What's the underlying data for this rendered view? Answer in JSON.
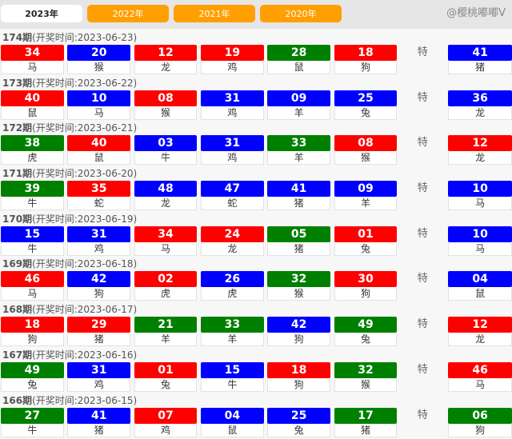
{
  "tabs": [
    {
      "label": "2023年",
      "active": true
    },
    {
      "label": "2022年"
    },
    {
      "label": "2021年"
    },
    {
      "label": "2020年"
    }
  ],
  "special_label": "特",
  "colors": {
    "red": "#ff0000",
    "blue": "#0000ff",
    "green": "#008000"
  },
  "watermark": "@樱桃嘟嘟V",
  "draws": [
    {
      "period": "174期",
      "time": "(开奖时间:2023-06-23)",
      "balls": [
        [
          "34",
          "red",
          "马"
        ],
        [
          "20",
          "blue",
          "猴"
        ],
        [
          "12",
          "red",
          "龙"
        ],
        [
          "19",
          "red",
          "鸡"
        ],
        [
          "28",
          "green",
          "鼠"
        ],
        [
          "18",
          "red",
          "狗"
        ]
      ],
      "special": [
        "41",
        "blue",
        "猪"
      ]
    },
    {
      "period": "173期",
      "time": "(开奖时间:2023-06-22)",
      "balls": [
        [
          "40",
          "red",
          "鼠"
        ],
        [
          "10",
          "blue",
          "马"
        ],
        [
          "08",
          "red",
          "猴"
        ],
        [
          "31",
          "blue",
          "鸡"
        ],
        [
          "09",
          "blue",
          "羊"
        ],
        [
          "25",
          "blue",
          "兔"
        ]
      ],
      "special": [
        "36",
        "blue",
        "龙"
      ]
    },
    {
      "period": "172期",
      "time": "(开奖时间:2023-06-21)",
      "balls": [
        [
          "38",
          "green",
          "虎"
        ],
        [
          "40",
          "red",
          "鼠"
        ],
        [
          "03",
          "blue",
          "牛"
        ],
        [
          "31",
          "blue",
          "鸡"
        ],
        [
          "33",
          "green",
          "羊"
        ],
        [
          "08",
          "red",
          "猴"
        ]
      ],
      "special": [
        "12",
        "red",
        "龙"
      ]
    },
    {
      "period": "171期",
      "time": "(开奖时间:2023-06-20)",
      "balls": [
        [
          "39",
          "green",
          "牛"
        ],
        [
          "35",
          "red",
          "蛇"
        ],
        [
          "48",
          "blue",
          "龙"
        ],
        [
          "47",
          "blue",
          "蛇"
        ],
        [
          "41",
          "blue",
          "猪"
        ],
        [
          "09",
          "blue",
          "羊"
        ]
      ],
      "special": [
        "10",
        "blue",
        "马"
      ]
    },
    {
      "period": "170期",
      "time": "(开奖时间:2023-06-19)",
      "balls": [
        [
          "15",
          "blue",
          "牛"
        ],
        [
          "31",
          "blue",
          "鸡"
        ],
        [
          "34",
          "red",
          "马"
        ],
        [
          "24",
          "red",
          "龙"
        ],
        [
          "05",
          "green",
          "猪"
        ],
        [
          "01",
          "red",
          "兔"
        ]
      ],
      "special": [
        "10",
        "blue",
        "马"
      ]
    },
    {
      "period": "169期",
      "time": "(开奖时间:2023-06-18)",
      "balls": [
        [
          "46",
          "red",
          "马"
        ],
        [
          "42",
          "blue",
          "狗"
        ],
        [
          "02",
          "red",
          "虎"
        ],
        [
          "26",
          "blue",
          "虎"
        ],
        [
          "32",
          "green",
          "猴"
        ],
        [
          "30",
          "red",
          "狗"
        ]
      ],
      "special": [
        "04",
        "blue",
        "鼠"
      ]
    },
    {
      "period": "168期",
      "time": "(开奖时间:2023-06-17)",
      "balls": [
        [
          "18",
          "red",
          "狗"
        ],
        [
          "29",
          "red",
          "猪"
        ],
        [
          "21",
          "green",
          "羊"
        ],
        [
          "33",
          "green",
          "羊"
        ],
        [
          "42",
          "blue",
          "狗"
        ],
        [
          "49",
          "green",
          "兔"
        ]
      ],
      "special": [
        "12",
        "red",
        "龙"
      ]
    },
    {
      "period": "167期",
      "time": "(开奖时间:2023-06-16)",
      "balls": [
        [
          "49",
          "green",
          "兔"
        ],
        [
          "31",
          "blue",
          "鸡"
        ],
        [
          "01",
          "red",
          "兔"
        ],
        [
          "15",
          "blue",
          "牛"
        ],
        [
          "18",
          "red",
          "狗"
        ],
        [
          "32",
          "green",
          "猴"
        ]
      ],
      "special": [
        "46",
        "red",
        "马"
      ]
    },
    {
      "period": "166期",
      "time": "(开奖时间:2023-06-15)",
      "balls": [
        [
          "27",
          "green",
          "牛"
        ],
        [
          "41",
          "blue",
          "猪"
        ],
        [
          "07",
          "red",
          "鸡"
        ],
        [
          "04",
          "blue",
          "鼠"
        ],
        [
          "25",
          "blue",
          "兔"
        ],
        [
          "17",
          "green",
          "猪"
        ]
      ],
      "special": [
        "06",
        "green",
        "狗"
      ]
    }
  ]
}
